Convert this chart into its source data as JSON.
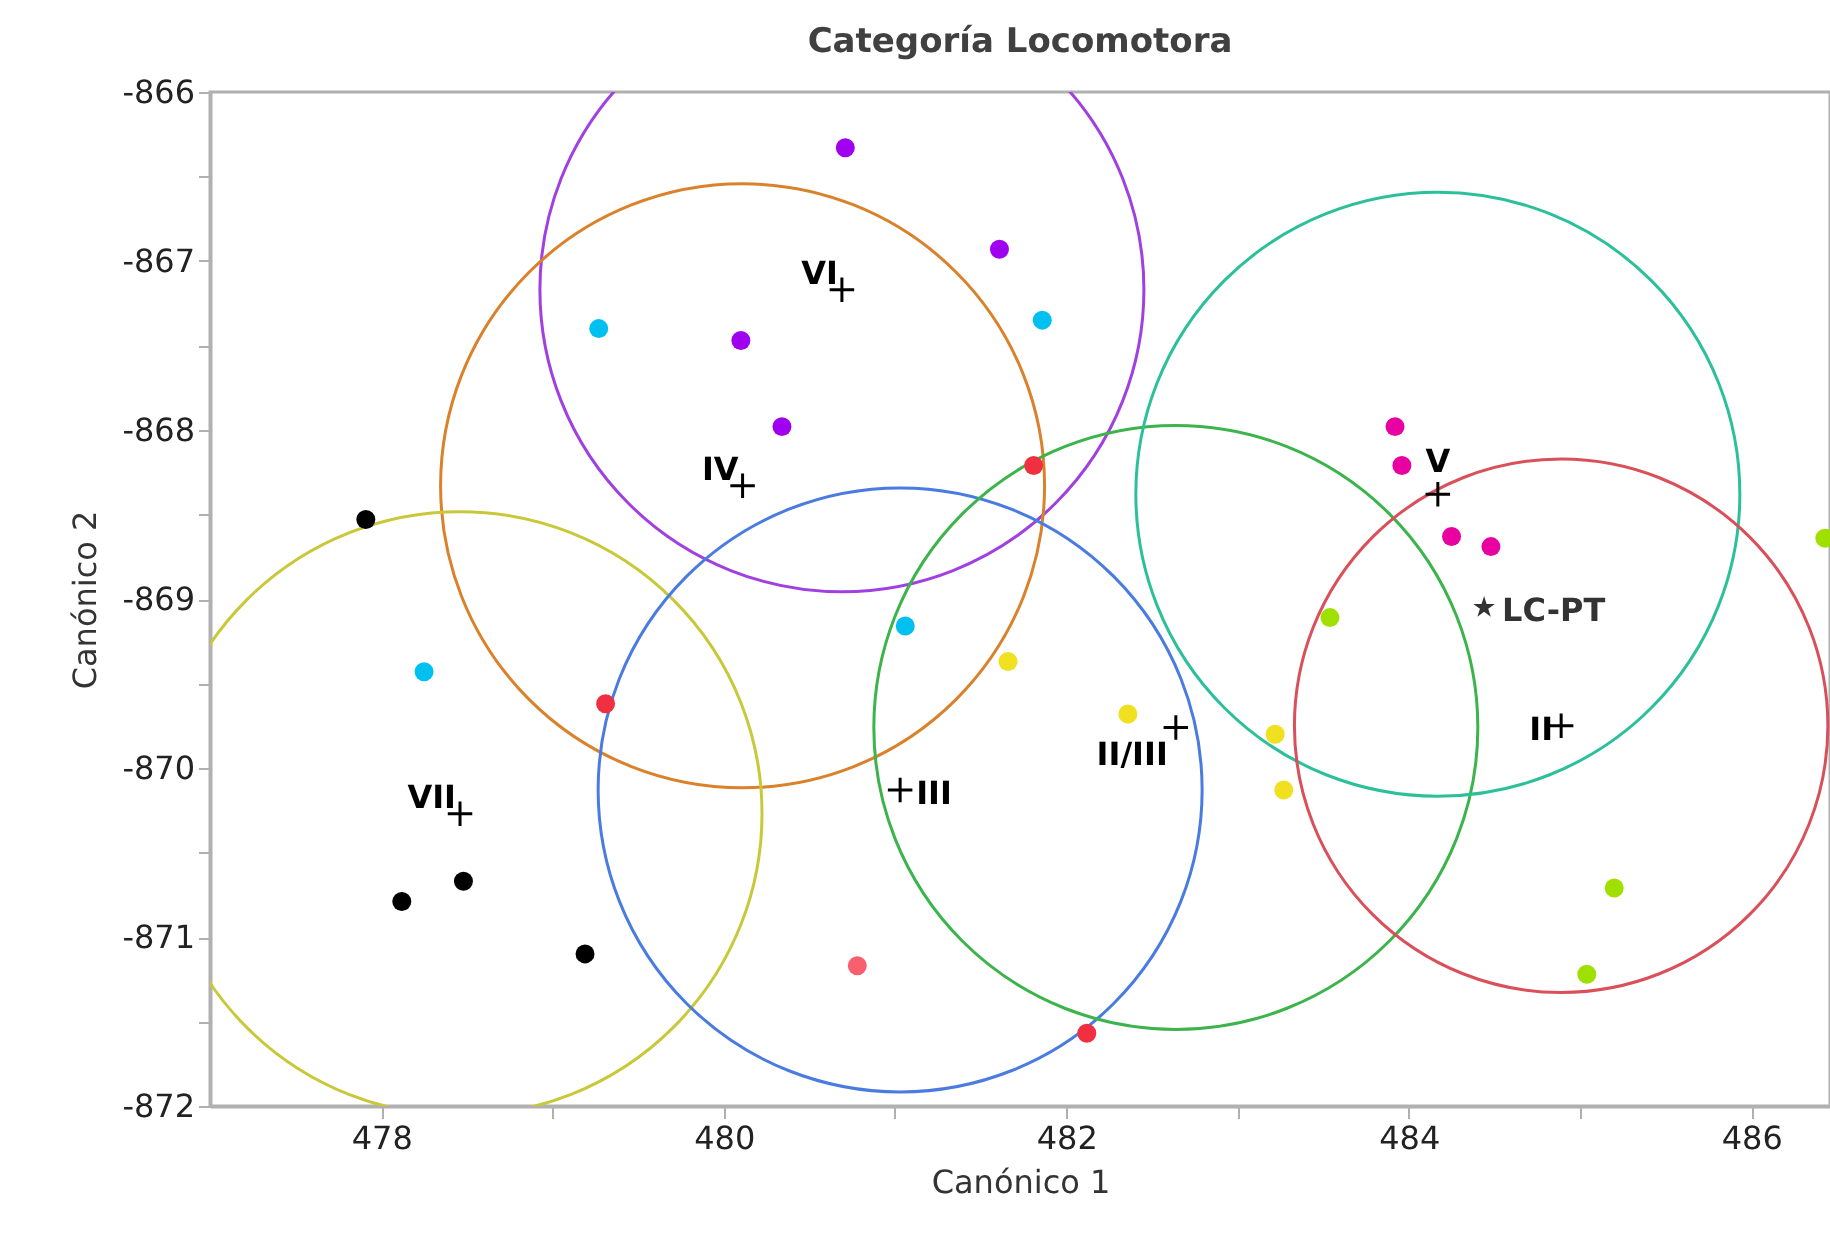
{
  "chart_data": {
    "type": "scatter",
    "title": "Categoría Locomotora",
    "xlabel": "Canónico 1",
    "ylabel": "Canónico 2",
    "xlim": [
      477,
      486.46
    ],
    "ylim": [
      -872,
      -866
    ],
    "xticks": [
      478,
      {
        "value": 479,
        "label": null
      },
      480,
      {
        "value": 481,
        "label": null
      },
      482,
      {
        "value": 483,
        "label": null
      },
      484,
      {
        "value": 485,
        "label": null
      },
      486
    ],
    "yticks": [
      -872,
      {
        "value": -871.5,
        "label": null
      },
      -871,
      {
        "value": -870.5,
        "label": null
      },
      -870,
      {
        "value": -869.5,
        "label": null
      },
      -869,
      {
        "value": -868.5,
        "label": null
      },
      -868,
      {
        "value": -867.5,
        "label": null
      },
      -867,
      {
        "value": -866.5,
        "label": null
      },
      -866
    ],
    "grid": false,
    "marker": "circle",
    "series": [
      {
        "type": "bubble",
        "color": "#000000",
        "x": [
          480.69,
          480.11,
          478.46,
          481.03,
          482.64,
          484.17,
          484.89
        ],
        "values": [
          -867.17,
          -868.33,
          -870.27,
          -870.13,
          -869.76,
          -868.38,
          -869.75
        ],
        "sizes": [
          1,
          1,
          1,
          1,
          1,
          1,
          0.78
        ],
        "colors": [
          "#a040e0",
          "#d9822b",
          "#c8c83a",
          "#4a7be0",
          "#3cb44b",
          "#2cc09a",
          "#d9505a"
        ],
        "value_labels": [
          "VI",
          "IV",
          "VII",
          "III",
          "II/III",
          "V",
          "II"
        ]
      },
      {
        "color": "#a000f0",
        "x": [
          480.71,
          481.61,
          480.1,
          480.34
        ],
        "values": [
          -866.33,
          -866.93,
          -867.47,
          -867.98
        ]
      },
      {
        "color": "#00c0f0",
        "x": [
          479.27,
          481.86,
          478.25,
          481.06
        ],
        "values": [
          -867.4,
          -867.35,
          -869.43,
          -869.16
        ]
      },
      {
        "color": "#000000",
        "x": [
          477.91,
          478.12,
          478.48,
          479.19
        ],
        "values": [
          -868.53,
          -870.79,
          -870.67,
          -871.1
        ]
      },
      {
        "color": "#f03040",
        "x": [
          481.81,
          479.31,
          482.12
        ],
        "values": [
          -868.21,
          -869.62,
          -871.57
        ]
      },
      {
        "color": "#f86070",
        "x": [
          480.78
        ],
        "values": [
          -871.17
        ]
      },
      {
        "color": "#f0e020",
        "x": [
          481.66,
          482.36,
          483.22,
          483.27
        ],
        "values": [
          -869.37,
          -869.68,
          -869.8,
          -870.13
        ]
      },
      {
        "color": "#e800a0",
        "x": [
          483.92,
          483.96,
          484.25,
          484.48
        ],
        "values": [
          -867.98,
          -868.21,
          -868.63,
          -868.69
        ]
      },
      {
        "color": "#a0e000",
        "x": [
          483.54,
          485.2,
          485.04,
          486.43
        ],
        "values": [
          -869.11,
          -870.71,
          -871.22,
          -868.64
        ]
      },
      {
        "marker": "star",
        "color": "#333333",
        "x": [
          484.44
        ],
        "values": [
          -869.05
        ],
        "value_labels": [
          "LC-PT"
        ]
      }
    ]
  }
}
